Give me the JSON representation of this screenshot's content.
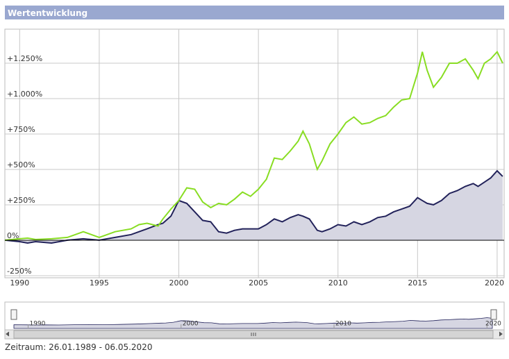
{
  "chart_data": {
    "type": "line",
    "title": "Wertentwicklung",
    "xlim": [
      1989.07,
      2020.44
    ],
    "xticks": [
      1990,
      1995,
      2000,
      2005,
      2010,
      2015,
      2020
    ],
    "ylim": [
      -265,
      1490
    ],
    "yticks": [
      {
        "value": -250,
        "label": "-250%"
      },
      {
        "value": 0,
        "label": "0%"
      },
      {
        "value": 250,
        "label": "+250%"
      },
      {
        "value": 500,
        "label": "+500%"
      },
      {
        "value": 750,
        "label": "+750%"
      },
      {
        "value": 1000,
        "label": "+1.000%"
      },
      {
        "value": 1250,
        "label": "+1.250%"
      }
    ],
    "grid": true,
    "x": [
      1989.07,
      1990,
      1990.5,
      1991,
      1992,
      1993,
      1994,
      1994.5,
      1995,
      1995.5,
      1996,
      1997,
      1997.5,
      1998,
      1998.7,
      1999,
      1999.5,
      2000,
      2000.5,
      2001,
      2001.5,
      2002,
      2002.5,
      2003,
      2003.5,
      2004,
      2004.5,
      2005,
      2005.5,
      2006,
      2006.5,
      2007,
      2007.5,
      2007.8,
      2008.2,
      2008.7,
      2009,
      2009.5,
      2010,
      2010.5,
      2011,
      2011.5,
      2012,
      2012.5,
      2013,
      2013.5,
      2014,
      2014.5,
      2015,
      2015.3,
      2015.6,
      2016,
      2016.5,
      2017,
      2017.5,
      2018,
      2018.5,
      2018.8,
      2019.2,
      2019.6,
      2020,
      2020.35
    ],
    "series": [
      {
        "color": "#88dd22",
        "values": [
          0,
          10,
          15,
          5,
          10,
          20,
          60,
          40,
          20,
          40,
          60,
          80,
          110,
          120,
          100,
          150,
          220,
          280,
          370,
          360,
          270,
          230,
          260,
          250,
          290,
          340,
          310,
          360,
          430,
          580,
          570,
          630,
          700,
          770,
          680,
          500,
          560,
          680,
          750,
          830,
          870,
          820,
          830,
          860,
          880,
          940,
          990,
          1000,
          1180,
          1330,
          1200,
          1080,
          1150,
          1250,
          1250,
          1280,
          1200,
          1140,
          1250,
          1280,
          1330,
          1250
        ]
      },
      {
        "color": "#22225a",
        "area": true,
        "values": [
          0,
          -10,
          -20,
          -10,
          -20,
          0,
          10,
          5,
          0,
          10,
          20,
          40,
          60,
          80,
          110,
          120,
          170,
          280,
          260,
          200,
          140,
          130,
          60,
          50,
          70,
          80,
          80,
          80,
          110,
          150,
          130,
          160,
          180,
          170,
          150,
          70,
          60,
          80,
          110,
          100,
          130,
          110,
          130,
          160,
          170,
          200,
          220,
          240,
          300,
          280,
          260,
          250,
          280,
          330,
          350,
          380,
          400,
          380,
          410,
          440,
          490,
          450
        ]
      }
    ],
    "navigator": {
      "xticks": [
        1990,
        2000,
        2010,
        2020
      ]
    },
    "footer": "Zeitraum: 26.01.1989 - 06.05.2020"
  }
}
